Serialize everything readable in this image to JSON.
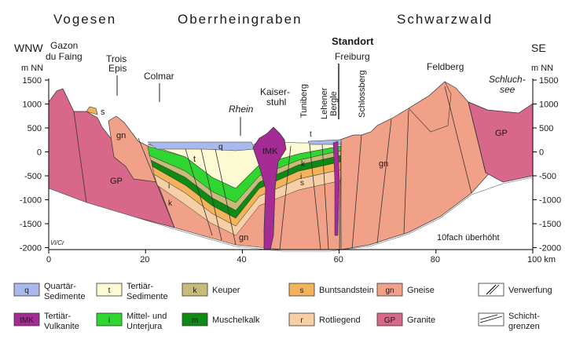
{
  "regions": [
    "Vogesen",
    "Oberrheingraben",
    "Schwarzwald"
  ],
  "direction": {
    "left": "WNW",
    "right": "SE"
  },
  "axis_unit": "m NN",
  "elevation_ticks": [
    "1500",
    "1000",
    "500",
    "0",
    "-500",
    "-1000",
    "-1500",
    "-2000"
  ],
  "distance_ticks": [
    "0",
    "20",
    "40",
    "60",
    "80",
    "100 km"
  ],
  "places": {
    "gazon1": "Gazon",
    "gazon2": "du Faing",
    "trois1": "Trois",
    "trois2": "Epis",
    "colmar": "Colmar",
    "rhein": "Rhein",
    "kaiser1": "Kaiser-",
    "kaiser2": "stuhl",
    "tuniberg": "Tuniberg",
    "lehener1": "Lehener",
    "lehener2": "Bergle",
    "standort": "Standort",
    "freiburg": "Freiburg",
    "schlossberg": "Schlossberg",
    "feldberg": "Feldberg",
    "schluch1": "Schluch-",
    "schluch2": "see"
  },
  "codes": {
    "q": "q",
    "t": "t",
    "tMK": "tMK",
    "k": "k",
    "m": "m",
    "s": "s",
    "r": "r",
    "gn": "gn",
    "gp": "GP",
    "i": "i"
  },
  "exaggeration": "10fach überhöht",
  "credit": "Vi/Cr",
  "legend": [
    {
      "code": "q",
      "line1": "Quartär-",
      "line2": "Sedimente",
      "color": "#a9b9ee"
    },
    {
      "code": "t",
      "line1": "Tertiär-",
      "line2": "Sedimente",
      "color": "#fcfad2"
    },
    {
      "code": "k",
      "line1": "Keuper",
      "line2": "",
      "color": "#c8bb7a"
    },
    {
      "code": "s",
      "line1": "Buntsandstein",
      "line2": "",
      "color": "#f3b35a"
    },
    {
      "code": "gn",
      "line1": "Gneise",
      "line2": "",
      "color": "#f2a189"
    },
    {
      "code": "",
      "line1": "Verwerfung",
      "line2": "",
      "color": "#ffffff"
    },
    {
      "code": "tMK",
      "line1": "Tertiär-",
      "line2": "Vulkanite",
      "color": "#a52c95"
    },
    {
      "code": "i",
      "line1": "Mittel- und",
      "line2": "Unterjura",
      "color": "#2fd62f"
    },
    {
      "code": "m",
      "line1": "Muschelkalk",
      "line2": "",
      "color": "#0f8a14"
    },
    {
      "code": "r",
      "line1": "Rotliegend",
      "line2": "",
      "color": "#f7cfa6"
    },
    {
      "code": "GP",
      "line1": "Granite",
      "line2": "",
      "color": "#d8688a"
    },
    {
      "code": "",
      "line1": "Schicht-",
      "line2": "grenzen",
      "color": "#ffffff"
    }
  ]
}
